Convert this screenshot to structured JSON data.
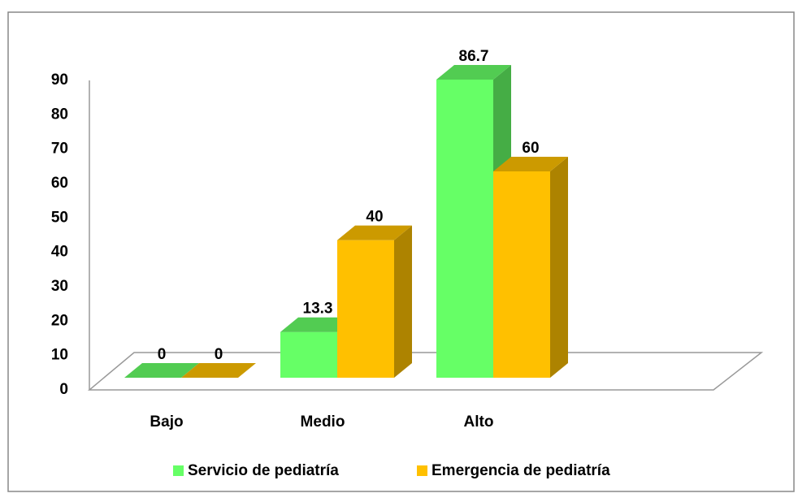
{
  "chart_data": {
    "type": "bar3d",
    "categories": [
      "Bajo",
      "Medio",
      "Alto"
    ],
    "series": [
      {
        "name": "Servicio de pediatría",
        "color": "#66ff66",
        "values": [
          0,
          13.3,
          86.7
        ]
      },
      {
        "name": "Emergencia de pediatría",
        "color": "#ffc000",
        "values": [
          0,
          40,
          60
        ]
      }
    ],
    "ylim": [
      0,
      90
    ],
    "yticks": [
      0,
      10,
      20,
      30,
      40,
      50,
      60,
      70,
      80,
      90
    ],
    "grid": false,
    "legend": "bottom"
  }
}
